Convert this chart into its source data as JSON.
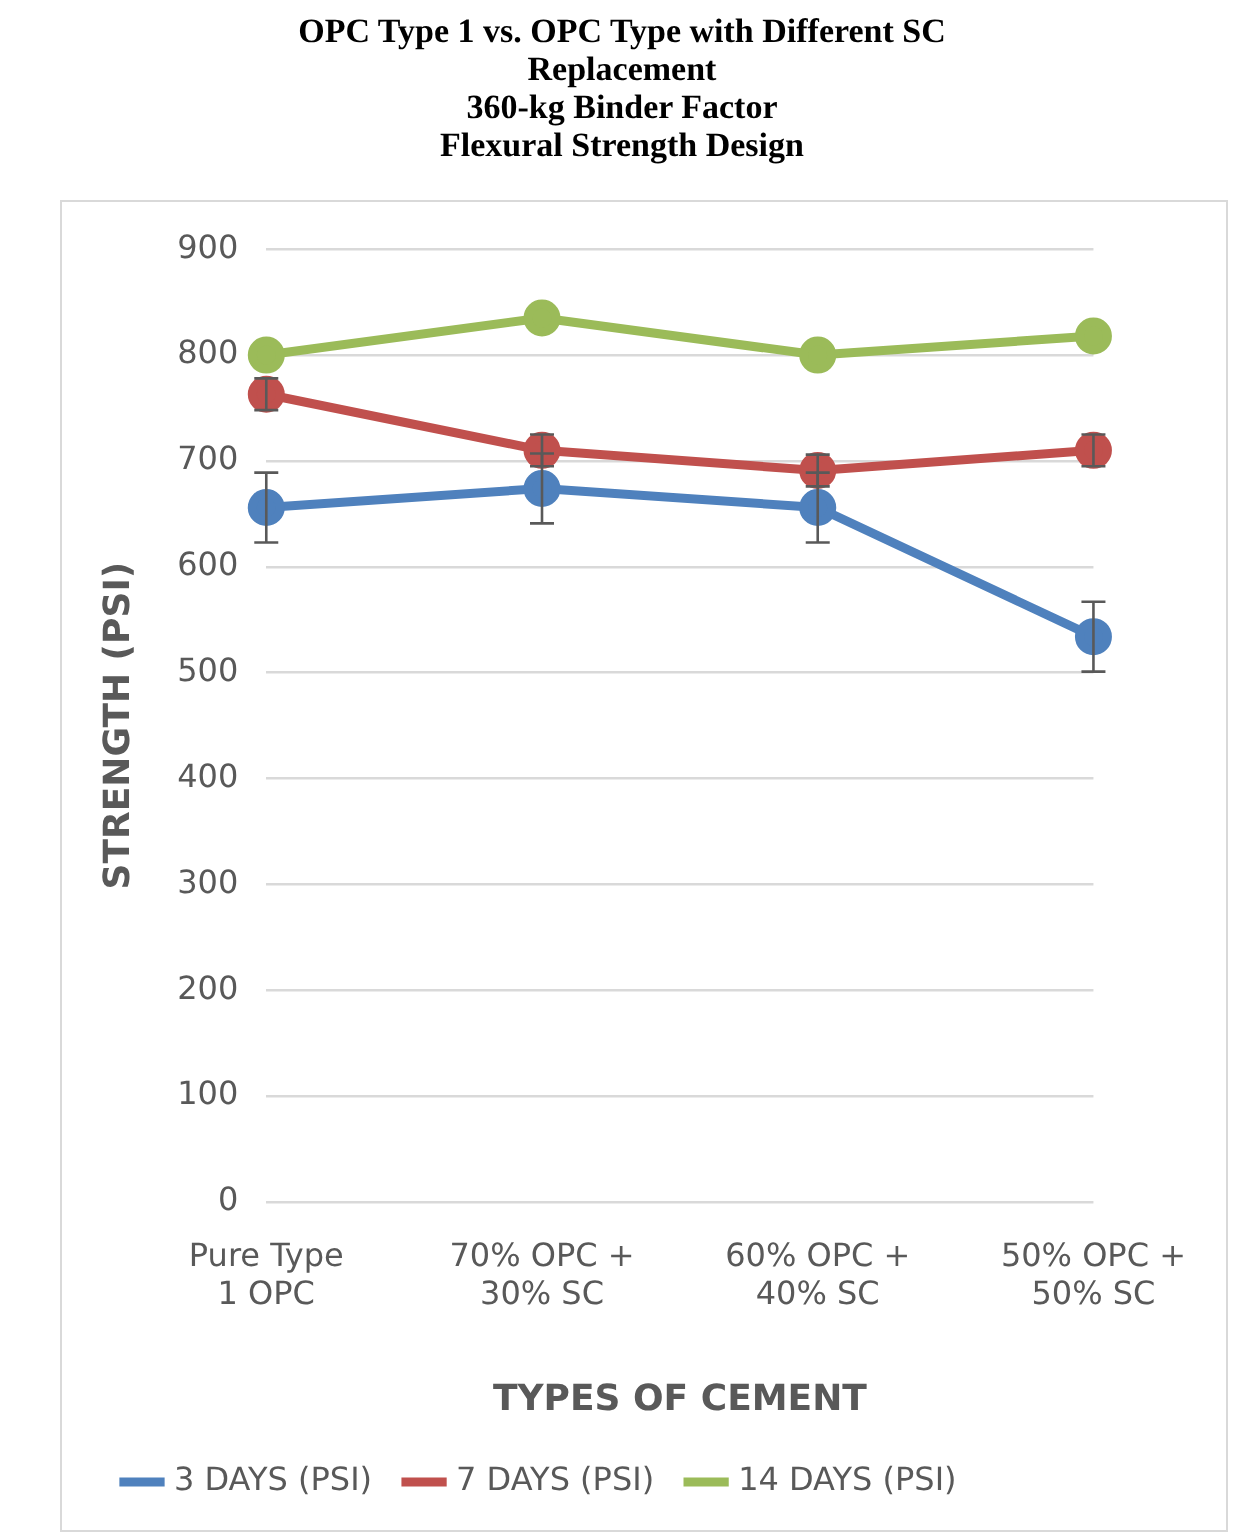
{
  "chart_data": {
    "type": "line",
    "title": "OPC Type 1 vs. OPC Type with Different SC Replacement",
    "subtitle": "360-kg Binder Factor\nFlexural Strength Design",
    "xlabel": "TYPES OF CEMENT",
    "ylabel": "STRENGTH (PSI)",
    "categories": [
      "Pure Type 1 OPC",
      "70% OPC + 30% SC",
      "60% OPC + 40% SC",
      "50% OPC + 50% SC"
    ],
    "series": [
      {
        "name": "3 DAYS (PSI)",
        "color": "#4f81bd",
        "values": [
          656,
          674,
          656,
          534
        ],
        "errors": [
          33,
          33,
          33,
          33
        ]
      },
      {
        "name": "7 DAYS (PSI)",
        "color": "#c0504d",
        "values": [
          763,
          710,
          691,
          710
        ],
        "errors": [
          15,
          15,
          15,
          15
        ]
      },
      {
        "name": "14 DAYS (PSI)",
        "color": "#9bbb59",
        "values": [
          800,
          835,
          800,
          818
        ]
      }
    ],
    "ylim": [
      0,
      900
    ],
    "yticks": [
      0,
      100,
      200,
      300,
      400,
      500,
      600,
      700,
      800,
      900
    ],
    "grid": "y",
    "legend": "bottom",
    "marker": "circle",
    "line_style": "solid"
  }
}
